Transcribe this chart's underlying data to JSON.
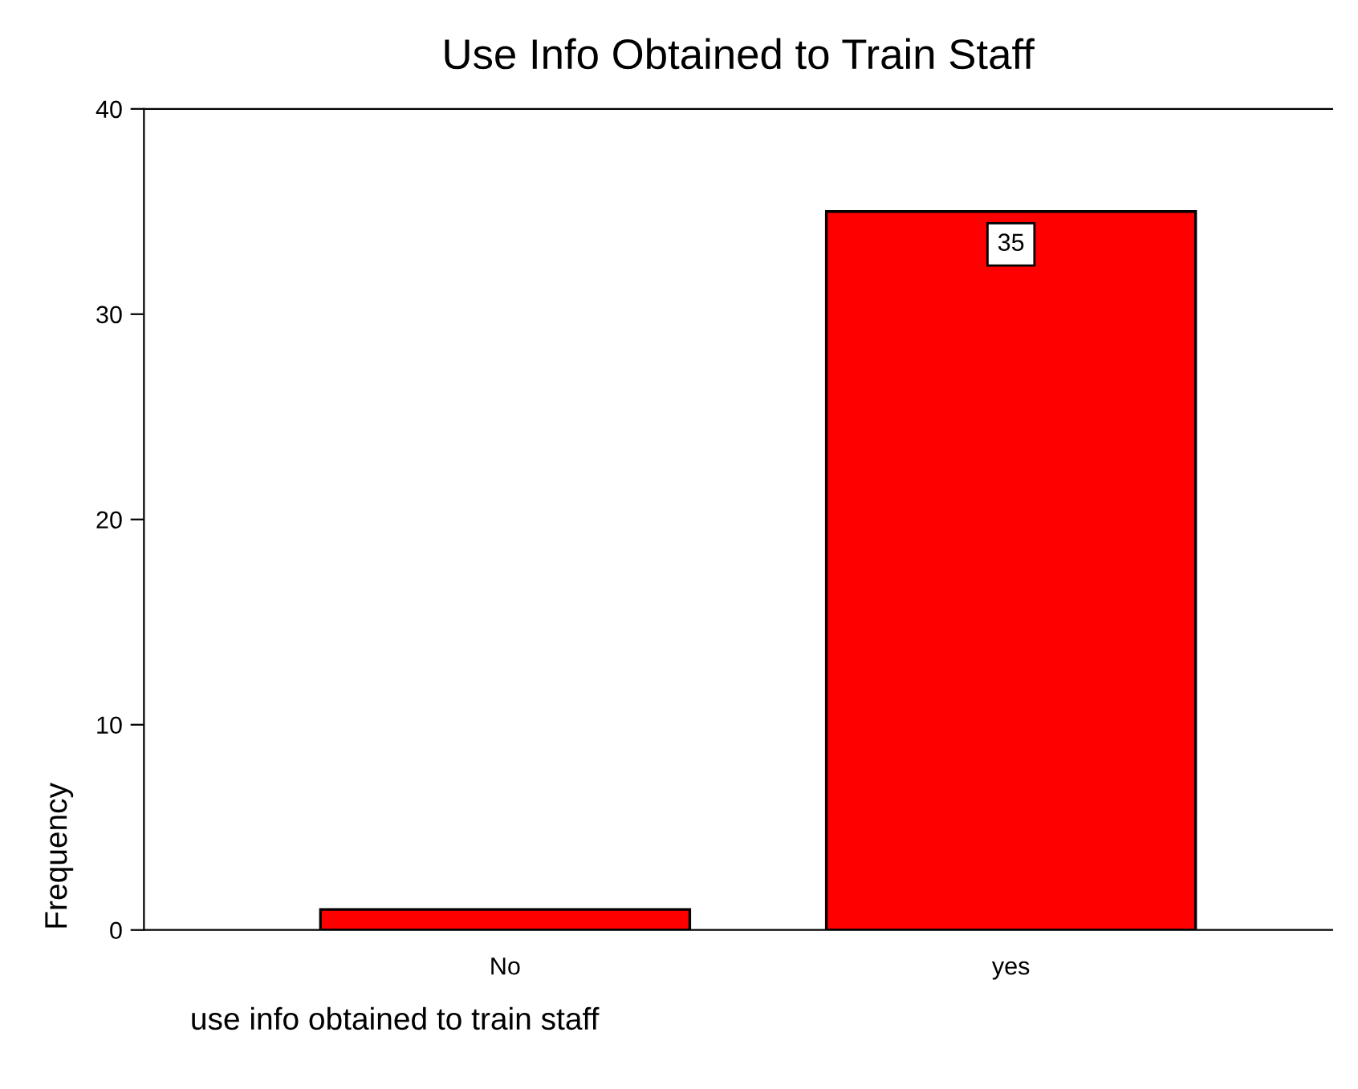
{
  "chart_data": {
    "type": "bar",
    "title": "Use Info Obtained to Train Staff",
    "xlabel": "use info obtained to train staff",
    "ylabel": "Frequency",
    "categories": [
      "No",
      "yes"
    ],
    "values": [
      1,
      35
    ],
    "value_labels": [
      null,
      "35"
    ],
    "color": "#ff0000",
    "ylim": [
      0,
      40
    ],
    "yticks": [
      0,
      10,
      20,
      30,
      40
    ],
    "grid": false,
    "legend": false
  }
}
